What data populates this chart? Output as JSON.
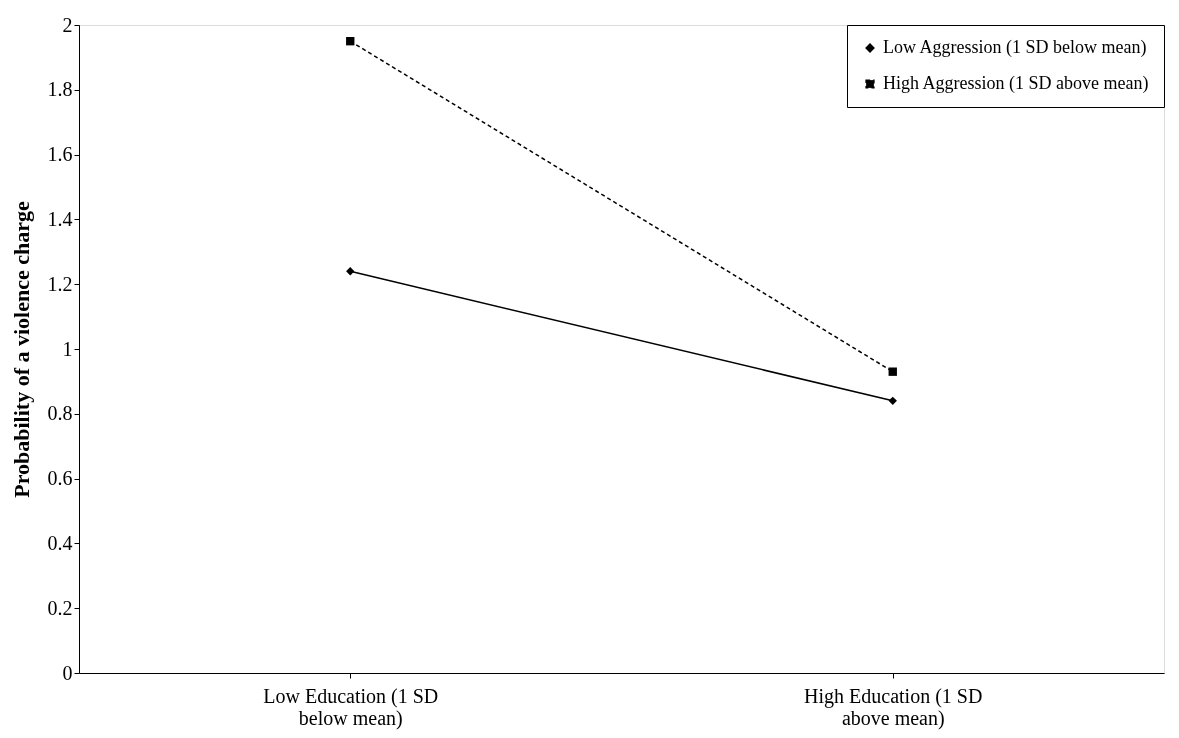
{
  "chart_data": {
    "type": "line",
    "ylabel": "Probability of a violence charge",
    "categories": [
      "Low Education (1 SD below mean)",
      "High Education (1 SD above mean)"
    ],
    "series": [
      {
        "name": "Low Aggression (1 SD below mean)",
        "color": "#000000",
        "values": [
          1.24,
          0.84
        ],
        "marker": "diamond",
        "line_style": "solid"
      },
      {
        "name": "High Aggression (1 SD above mean)",
        "color": "#000000",
        "values": [
          1.95,
          0.93
        ],
        "marker": "square",
        "line_style": "dashed"
      }
    ],
    "ylim": [
      0,
      2
    ],
    "yticks": [
      0,
      0.2,
      0.4,
      0.6,
      0.8,
      1,
      1.2,
      1.4,
      1.6,
      1.8,
      2
    ],
    "grid": false,
    "legend": "top right"
  }
}
